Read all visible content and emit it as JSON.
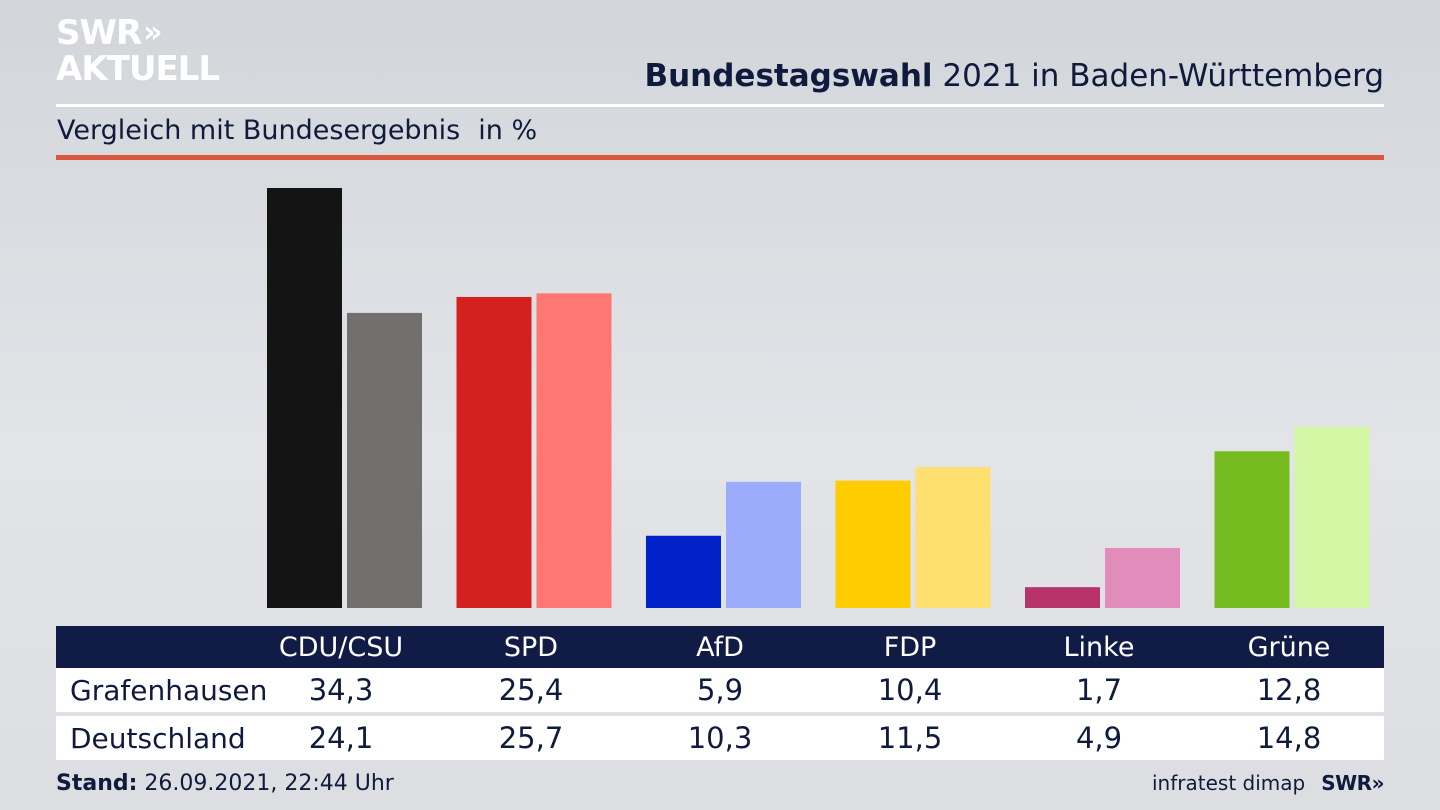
{
  "logo": {
    "line1": "SWR",
    "chevrons": "»",
    "line2": "AKTUELL"
  },
  "header": {
    "title_bold": "Bundestagswahl",
    "title_rest": " 2021 in Baden-Württemberg",
    "subtitle": "Vergleich mit Bundesergebnis",
    "unit": "in %"
  },
  "table": {
    "columns": [
      "CDU/CSU",
      "SPD",
      "AfD",
      "FDP",
      "Linke",
      "Grüne"
    ],
    "rows": [
      {
        "label": "Grafenhausen",
        "values": [
          "34,3",
          "25,4",
          "5,9",
          "10,4",
          "1,7",
          "12,8"
        ]
      },
      {
        "label": "Deutschland",
        "values": [
          "24,1",
          "25,7",
          "10,3",
          "11,5",
          "4,9",
          "14,8"
        ]
      }
    ]
  },
  "footer": {
    "stand_label": "Stand:",
    "stand_value": " 26.09.2021, 22:44 Uhr",
    "source": "infratest dimap",
    "brand": "SWR",
    "brand_chevrons": "»"
  },
  "colors": {
    "background": "#dcdee2",
    "title": "#0f1b3c",
    "accent_red": "#d9573c",
    "table_header": "#101c45"
  },
  "chart_data": {
    "type": "bar",
    "categories": [
      "CDU/CSU",
      "SPD",
      "AfD",
      "FDP",
      "Linke",
      "Grüne"
    ],
    "series": [
      {
        "name": "Grafenhausen",
        "values": [
          34.3,
          25.4,
          5.9,
          10.4,
          1.7,
          12.8
        ],
        "colors": [
          "#141414",
          "#d4201f",
          "#0022c8",
          "#ffcc00",
          "#b8336a",
          "#76bb20"
        ]
      },
      {
        "name": "Deutschland",
        "values": [
          24.1,
          25.7,
          10.3,
          11.5,
          4.9,
          14.8
        ],
        "colors": [
          "#72706e",
          "#ff7773",
          "#9cabfb",
          "#fde06f",
          "#e18cba",
          "#d4f7a6"
        ]
      }
    ],
    "ylim": [
      0,
      34.3
    ],
    "grid": false,
    "title": "Bundestagswahl 2021 in Baden-Württemberg",
    "subtitle": "Vergleich mit Bundesergebnis",
    "ylabel": "",
    "xlabel": ""
  }
}
